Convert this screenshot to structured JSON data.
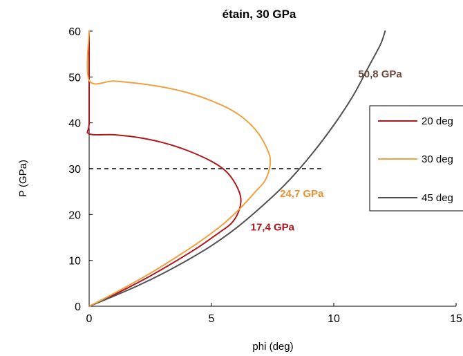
{
  "chart_data": {
    "type": "line",
    "title": "étain, 30 GPa",
    "xlabel": "phi (deg)",
    "ylabel": "P (GPa)",
    "xlim": [
      0,
      15
    ],
    "ylim": [
      0,
      60
    ],
    "xticks": [
      "0",
      "5",
      "10",
      "15"
    ],
    "yticks": [
      "0",
      "10",
      "20",
      "30",
      "40",
      "50",
      "60"
    ],
    "grid": false,
    "legend_position": "right",
    "series": [
      {
        "name": "20 deg",
        "color": "#b0161c",
        "points": [
          [
            0,
            60
          ],
          [
            0,
            50
          ],
          [
            0,
            40
          ],
          [
            0,
            37.6
          ],
          [
            1,
            37.4
          ],
          [
            2,
            36.8
          ],
          [
            3,
            35.7
          ],
          [
            4,
            34
          ],
          [
            5,
            31.6
          ],
          [
            5.6,
            29.4
          ],
          [
            6,
            26.5
          ],
          [
            6.2,
            23.5
          ],
          [
            6.1,
            20.5
          ],
          [
            5.8,
            18
          ],
          [
            5.3,
            16
          ],
          [
            4.5,
            13
          ],
          [
            3.5,
            9.7
          ],
          [
            2.5,
            6.6
          ],
          [
            1.5,
            3.8
          ],
          [
            0.7,
            1.7
          ],
          [
            0,
            0
          ]
        ]
      },
      {
        "name": "30 deg",
        "color": "#f0a040",
        "points": [
          [
            0,
            60
          ],
          [
            0,
            49.3
          ],
          [
            1,
            49.1
          ],
          [
            2,
            48.6
          ],
          [
            3,
            47.8
          ],
          [
            4,
            46.6
          ],
          [
            5,
            44.8
          ],
          [
            6,
            42.2
          ],
          [
            6.8,
            38.5
          ],
          [
            7.3,
            34
          ],
          [
            7.4,
            31
          ],
          [
            7.2,
            27.5
          ],
          [
            6.8,
            25
          ],
          [
            6.2,
            21.5
          ],
          [
            5.5,
            18
          ],
          [
            4.5,
            14
          ],
          [
            3.5,
            10.5
          ],
          [
            2.5,
            7.2
          ],
          [
            1.5,
            4.2
          ],
          [
            0.7,
            1.9
          ],
          [
            0,
            0
          ]
        ]
      },
      {
        "name": "45 deg",
        "color": "#505050",
        "points": [
          [
            0,
            0
          ],
          [
            1,
            2.2
          ],
          [
            2,
            4.5
          ],
          [
            3,
            7.1
          ],
          [
            4,
            10
          ],
          [
            5,
            13.2
          ],
          [
            6,
            17
          ],
          [
            7,
            21.5
          ],
          [
            8,
            26.5
          ],
          [
            9,
            32.5
          ],
          [
            10,
            39.5
          ],
          [
            10.8,
            46
          ],
          [
            11.4,
            52
          ],
          [
            11.9,
            57
          ],
          [
            12.1,
            60
          ]
        ]
      }
    ],
    "reference_line": {
      "y": 30,
      "x_range": [
        0,
        9.6
      ],
      "style": "dashed"
    },
    "annotations": [
      {
        "text": "50,8 GPa",
        "color": "#6b4a3a",
        "at": [
          11,
          50.8
        ]
      },
      {
        "text": "24,7 GPa",
        "color": "#e89030",
        "at": [
          7.8,
          24.7
        ]
      },
      {
        "text": "17,4 GPa",
        "color": "#a8161c",
        "at": [
          6.6,
          17.4
        ]
      }
    ]
  }
}
